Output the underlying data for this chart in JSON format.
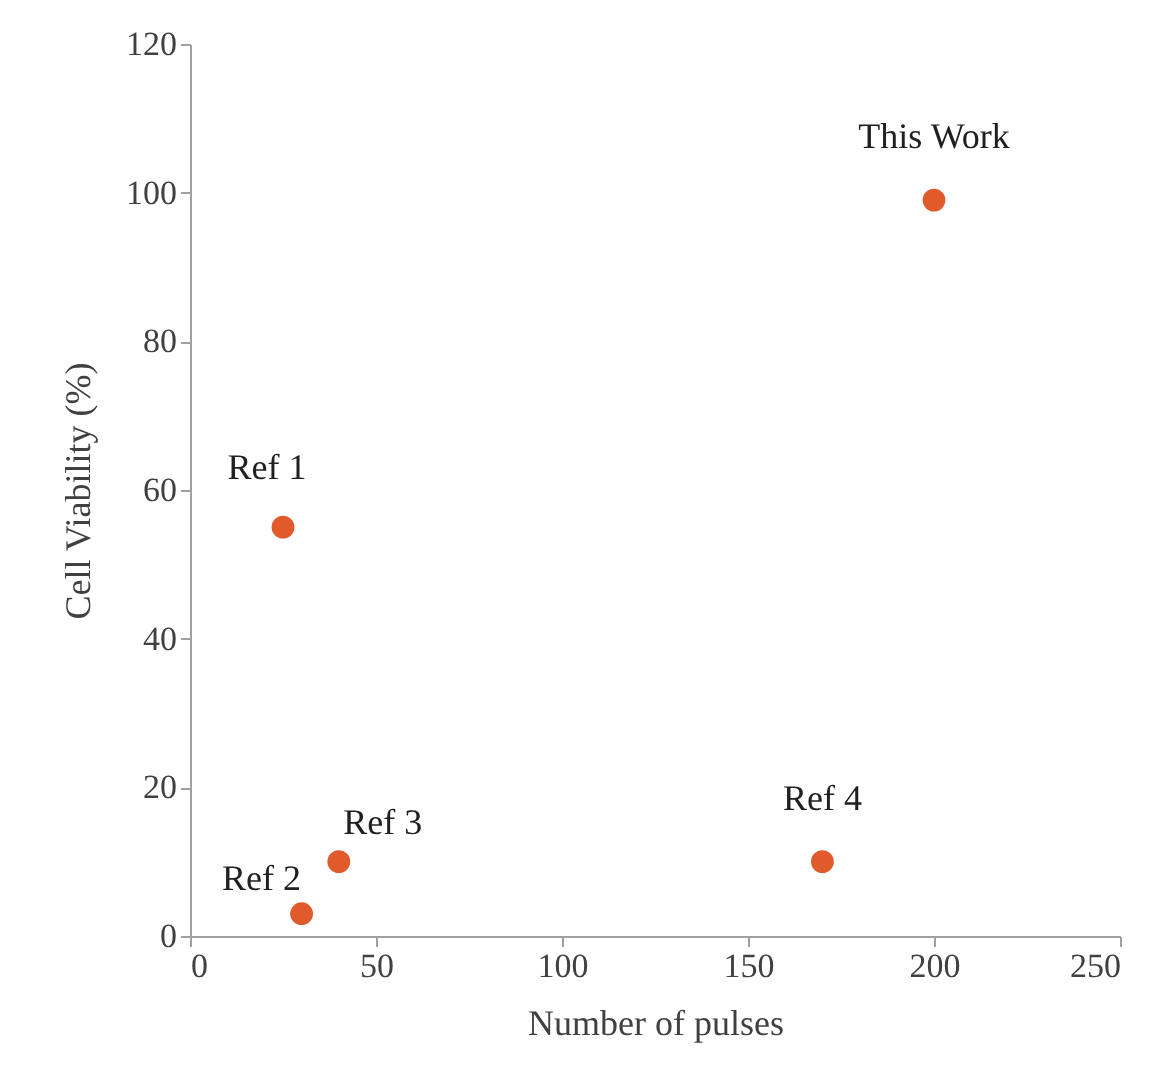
{
  "chart_data": {
    "type": "scatter",
    "xlabel": "Number of pulses",
    "ylabel": "Cell Viability (%)",
    "x": [
      25,
      30,
      40,
      170,
      200
    ],
    "values": [
      55,
      3,
      10,
      10,
      99
    ],
    "color": "#e05a2b",
    "marker": "circle",
    "xlim": [
      0,
      250
    ],
    "xticks": [
      0,
      50,
      100,
      150,
      200,
      250
    ],
    "ylim": [
      0,
      120
    ],
    "yticks": [
      0,
      20,
      40,
      60,
      80,
      100,
      120
    ],
    "grid": false,
    "annotations": [
      {
        "text": "Ref 1",
        "x": 25,
        "y": 55
      },
      {
        "text": "Ref 2",
        "x": 30,
        "y": 3
      },
      {
        "text": "Ref 3",
        "x": 40,
        "y": 10
      },
      {
        "text": "Ref 4",
        "x": 170,
        "y": 10
      },
      {
        "text": "This Work",
        "x": 200,
        "y": 99
      }
    ]
  }
}
